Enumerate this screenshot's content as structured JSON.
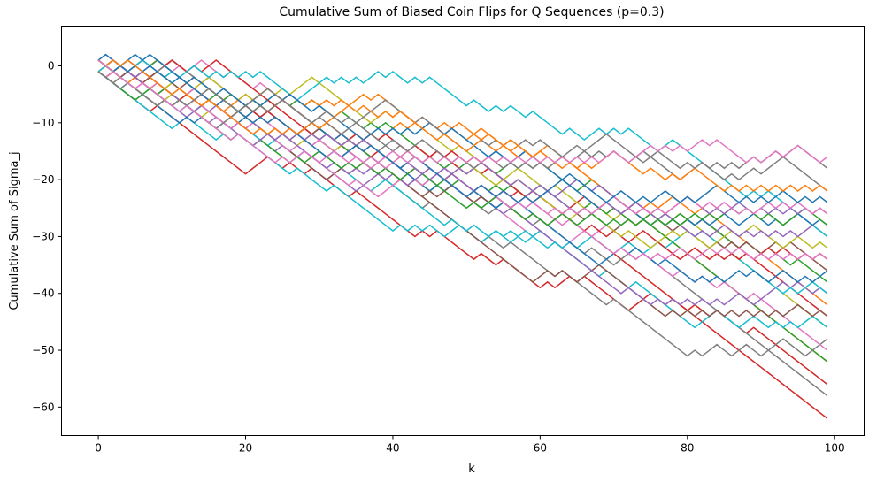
{
  "chart_data": {
    "type": "line",
    "title": "Cumulative Sum of Biased Coin Flips for Q Sequences (p=0.3)",
    "xlabel": "k",
    "ylabel": "Cumulative Sum of Sigma_j",
    "xlim": [
      -5,
      104
    ],
    "ylim": [
      -65,
      7
    ],
    "xticks": [
      0,
      20,
      40,
      60,
      80,
      100
    ],
    "yticks": [
      0,
      -10,
      -20,
      -30,
      -40,
      -50,
      -60
    ],
    "grid": false,
    "legend": "none",
    "n_steps": 100,
    "step_size": 1,
    "colors": [
      "#1f77b4",
      "#ff7f0e",
      "#2ca02c",
      "#d62728",
      "#9467bd",
      "#8c564b",
      "#e377c2",
      "#7f7f7f",
      "#bcbd22",
      "#17becf"
    ],
    "series": [
      {
        "color": "#d62728",
        "y_final": -62,
        "y_min": -62,
        "y_max": 1
      },
      {
        "color": "#d62728",
        "y_final": -56,
        "y_min": -59,
        "y_max": 1
      },
      {
        "color": "#7f7f7f",
        "y_final": -58,
        "y_min": -59,
        "y_max": 1
      },
      {
        "color": "#ff7f0e",
        "y_final": -52,
        "y_min": -54,
        "y_max": 1
      },
      {
        "color": "#2ca02c",
        "y_final": -52,
        "y_min": -52,
        "y_max": 1
      },
      {
        "color": "#7f7f7f",
        "y_final": -48,
        "y_min": -54,
        "y_max": 1
      },
      {
        "color": "#e377c2",
        "y_final": -50,
        "y_min": -52,
        "y_max": 1
      },
      {
        "color": "#d62728",
        "y_final": -44,
        "y_min": -48,
        "y_max": 1
      },
      {
        "color": "#bcbd22",
        "y_final": -46,
        "y_min": -47,
        "y_max": 1
      },
      {
        "color": "#17becf",
        "y_final": -46,
        "y_min": -46,
        "y_max": 1
      },
      {
        "color": "#8c564b",
        "y_final": -44,
        "y_min": -44,
        "y_max": 1
      },
      {
        "color": "#ff7f0e",
        "y_final": -42,
        "y_min": -42,
        "y_max": 1
      },
      {
        "color": "#9467bd",
        "y_final": -40,
        "y_min": -42,
        "y_max": 1
      },
      {
        "color": "#17becf",
        "y_final": -40,
        "y_min": -40,
        "y_max": 1
      },
      {
        "color": "#2ca02c",
        "y_final": -38,
        "y_min": -40,
        "y_max": 1
      },
      {
        "color": "#1f77b4",
        "y_final": -36,
        "y_min": -38,
        "y_max": 1
      },
      {
        "color": "#8c564b",
        "y_final": -36,
        "y_min": -36,
        "y_max": 1
      },
      {
        "color": "#d62728",
        "y_final": -34,
        "y_min": -34,
        "y_max": 2
      },
      {
        "color": "#e377c2",
        "y_final": -34,
        "y_min": -34,
        "y_max": 1
      },
      {
        "color": "#bcbd22",
        "y_final": -32,
        "y_min": -32,
        "y_max": 2
      },
      {
        "color": "#9467bd",
        "y_final": -30,
        "y_min": -30,
        "y_max": 2
      },
      {
        "color": "#17becf",
        "y_final": -30,
        "y_min": -30,
        "y_max": 1
      },
      {
        "color": "#1f77b4",
        "y_final": -28,
        "y_min": -28,
        "y_max": 2
      },
      {
        "color": "#2ca02c",
        "y_final": -28,
        "y_min": -28,
        "y_max": 3
      },
      {
        "color": "#9467bd",
        "y_final": -26,
        "y_min": -26,
        "y_max": 4
      },
      {
        "color": "#e377c2",
        "y_final": -26,
        "y_min": -26,
        "y_max": 2
      },
      {
        "color": "#1f77b4",
        "y_final": -24,
        "y_min": -24,
        "y_max": 2
      },
      {
        "color": "#7f7f7f",
        "y_final": -22,
        "y_min": -22,
        "y_max": 3
      },
      {
        "color": "#ff7f0e",
        "y_final": -22,
        "y_min": -22,
        "y_max": 3
      },
      {
        "color": "#7f7f7f",
        "y_final": -18,
        "y_min": -18,
        "y_max": 1
      },
      {
        "color": "#e377c2",
        "y_final": -16,
        "y_min": -17,
        "y_max": 1
      }
    ]
  }
}
